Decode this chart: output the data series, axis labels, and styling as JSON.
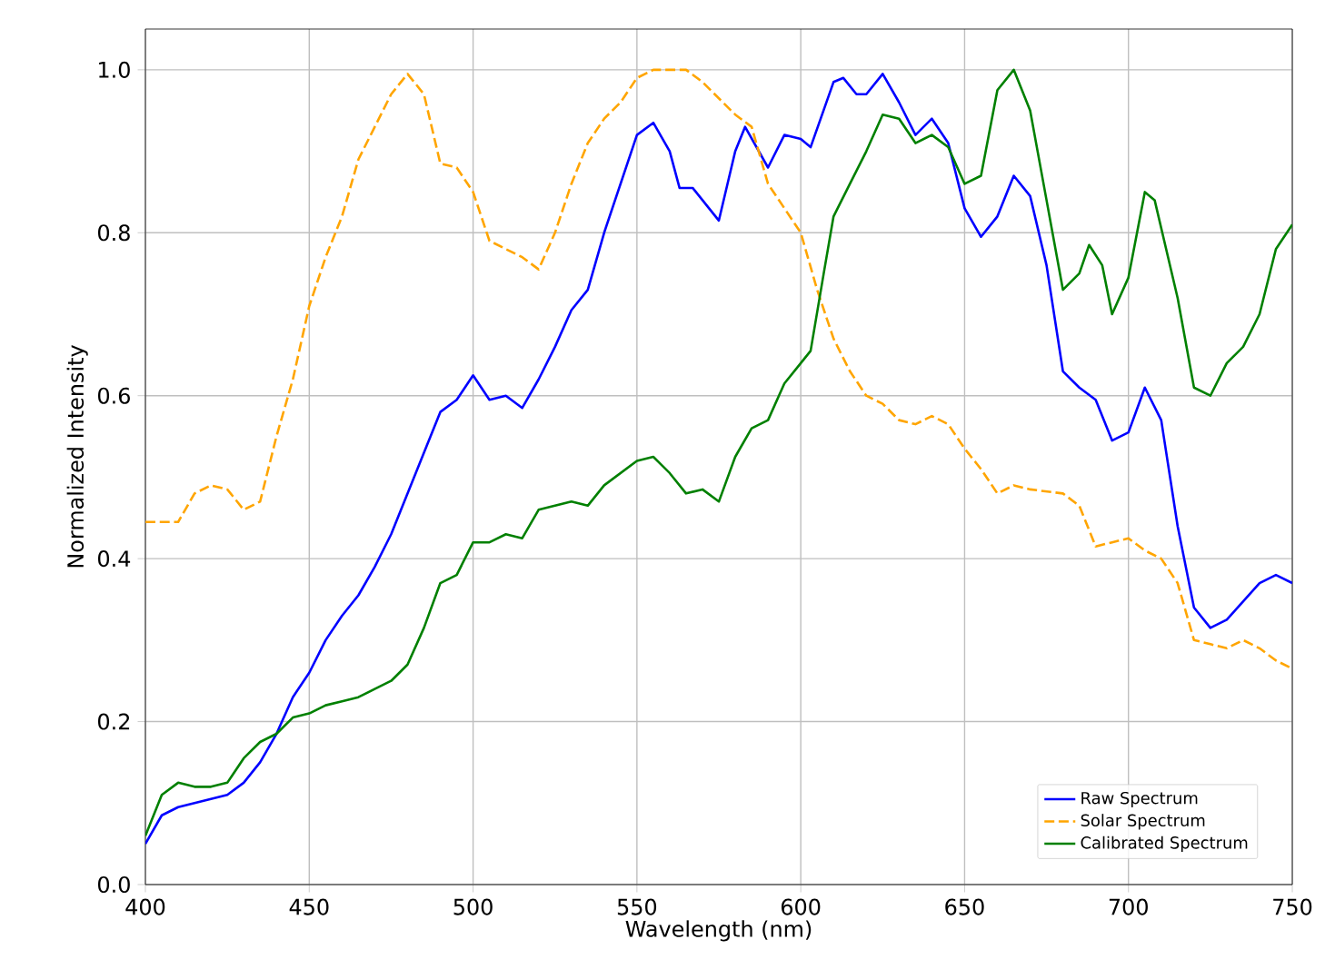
{
  "chart_data": {
    "type": "line",
    "xlabel": "Wavelength (nm)",
    "ylabel": "Normalized Intensity",
    "xlim": [
      400,
      750
    ],
    "ylim": [
      0,
      1.05
    ],
    "xticks": [
      400,
      450,
      500,
      550,
      600,
      650,
      700,
      750
    ],
    "yticks": [
      {
        "value": 0,
        "label": "0.0"
      },
      {
        "value": 0.2,
        "label": "0.2"
      },
      {
        "value": 0.4,
        "label": "0.4"
      },
      {
        "value": 0.6,
        "label": "0.6"
      },
      {
        "value": 0.8,
        "label": "0.8"
      },
      {
        "value": 1.0,
        "label": "1.0"
      }
    ],
    "grid": true,
    "legend": "bottom right",
    "series": [
      {
        "name": "Raw Spectrum",
        "color": "#0000ff",
        "line_style": "solid",
        "x": [
          400,
          405,
          410,
          420,
          425,
          430,
          435,
          440,
          445,
          450,
          455,
          460,
          465,
          470,
          475,
          480,
          485,
          490,
          495,
          500,
          505,
          510,
          515,
          520,
          525,
          530,
          535,
          540,
          545,
          550,
          555,
          560,
          563,
          567,
          575,
          580,
          583,
          590,
          595,
          600,
          603,
          610,
          613,
          617,
          620,
          625,
          630,
          635,
          640,
          645,
          650,
          655,
          660,
          665,
          670,
          675,
          680,
          685,
          690,
          695,
          700,
          705,
          710,
          715,
          720,
          725,
          730,
          740,
          745,
          750
        ],
        "values": [
          0.05,
          0.085,
          0.095,
          0.105,
          0.11,
          0.125,
          0.15,
          0.185,
          0.23,
          0.26,
          0.3,
          0.33,
          0.355,
          0.39,
          0.43,
          0.48,
          0.53,
          0.58,
          0.595,
          0.625,
          0.595,
          0.6,
          0.585,
          0.62,
          0.66,
          0.705,
          0.73,
          0.8,
          0.86,
          0.92,
          0.935,
          0.9,
          0.855,
          0.855,
          0.815,
          0.9,
          0.93,
          0.88,
          0.92,
          0.915,
          0.905,
          0.985,
          0.99,
          0.97,
          0.97,
          0.995,
          0.96,
          0.92,
          0.94,
          0.91,
          0.83,
          0.795,
          0.82,
          0.87,
          0.845,
          0.76,
          0.63,
          0.61,
          0.595,
          0.545,
          0.555,
          0.61,
          0.57,
          0.44,
          0.34,
          0.315,
          0.325,
          0.37,
          0.38,
          0.37
        ]
      },
      {
        "name": "Solar Spectrum",
        "color": "#ffa500",
        "line_style": "dashed",
        "x": [
          400,
          410,
          415,
          420,
          425,
          430,
          435,
          440,
          445,
          450,
          455,
          460,
          465,
          470,
          475,
          480,
          485,
          490,
          495,
          500,
          505,
          510,
          515,
          520,
          525,
          530,
          535,
          540,
          545,
          550,
          555,
          560,
          565,
          570,
          575,
          580,
          585,
          590,
          595,
          600,
          605,
          610,
          615,
          620,
          625,
          630,
          635,
          640,
          645,
          650,
          655,
          660,
          665,
          670,
          680,
          685,
          690,
          695,
          700,
          705,
          710,
          715,
          720,
          725,
          730,
          735,
          740,
          745,
          750
        ],
        "values": [
          0.445,
          0.445,
          0.48,
          0.49,
          0.485,
          0.46,
          0.47,
          0.55,
          0.62,
          0.71,
          0.77,
          0.82,
          0.89,
          0.93,
          0.97,
          0.995,
          0.97,
          0.885,
          0.88,
          0.85,
          0.79,
          0.78,
          0.77,
          0.755,
          0.8,
          0.86,
          0.91,
          0.94,
          0.96,
          0.99,
          1.0,
          1.0,
          1.0,
          0.985,
          0.965,
          0.945,
          0.93,
          0.86,
          0.83,
          0.8,
          0.73,
          0.67,
          0.63,
          0.6,
          0.59,
          0.57,
          0.565,
          0.575,
          0.565,
          0.535,
          0.51,
          0.48,
          0.49,
          0.485,
          0.48,
          0.465,
          0.415,
          0.42,
          0.425,
          0.41,
          0.4,
          0.37,
          0.3,
          0.295,
          0.29,
          0.3,
          0.29,
          0.275,
          0.265
        ]
      },
      {
        "name": "Calibrated Spectrum",
        "color": "#008000",
        "line_style": "solid",
        "x": [
          400,
          405,
          410,
          415,
          420,
          425,
          430,
          435,
          440,
          445,
          450,
          455,
          460,
          465,
          470,
          475,
          480,
          485,
          490,
          495,
          500,
          505,
          510,
          515,
          520,
          525,
          530,
          535,
          540,
          545,
          550,
          555,
          560,
          565,
          570,
          575,
          580,
          585,
          590,
          595,
          600,
          603,
          607,
          610,
          615,
          620,
          625,
          630,
          635,
          640,
          645,
          650,
          655,
          660,
          665,
          670,
          675,
          680,
          685,
          688,
          692,
          695,
          700,
          705,
          708,
          715,
          720,
          725,
          730,
          735,
          740,
          745,
          750
        ],
        "values": [
          0.06,
          0.11,
          0.125,
          0.12,
          0.12,
          0.125,
          0.155,
          0.175,
          0.185,
          0.205,
          0.21,
          0.22,
          0.225,
          0.23,
          0.24,
          0.25,
          0.27,
          0.315,
          0.37,
          0.38,
          0.42,
          0.42,
          0.43,
          0.425,
          0.46,
          0.465,
          0.47,
          0.465,
          0.49,
          0.505,
          0.52,
          0.525,
          0.505,
          0.48,
          0.485,
          0.47,
          0.525,
          0.56,
          0.57,
          0.615,
          0.64,
          0.655,
          0.75,
          0.82,
          0.86,
          0.9,
          0.945,
          0.94,
          0.91,
          0.92,
          0.905,
          0.86,
          0.87,
          0.975,
          1.0,
          0.95,
          0.84,
          0.73,
          0.75,
          0.785,
          0.76,
          0.7,
          0.745,
          0.85,
          0.84,
          0.72,
          0.61,
          0.6,
          0.64,
          0.66,
          0.7,
          0.78,
          0.81
        ]
      }
    ]
  }
}
